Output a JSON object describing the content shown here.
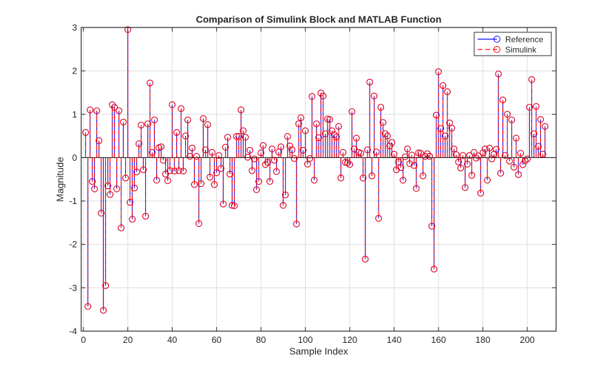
{
  "chart_data": {
    "type": "stem",
    "title": "Comparison of Simulink Block and MATLAB Function",
    "xlabel": "Sample Index",
    "ylabel": "Magnitude",
    "xlim": [
      -1,
      213
    ],
    "ylim": [
      -4,
      3
    ],
    "xticks": [
      0,
      20,
      40,
      60,
      80,
      100,
      120,
      140,
      160,
      180,
      200
    ],
    "xtick_labels": [
      "0",
      "20",
      "40",
      "60",
      "80",
      "100",
      "120",
      "140",
      "160",
      "180",
      "200"
    ],
    "yticks": [
      -4,
      -3,
      -2,
      -1,
      0,
      1,
      2,
      3
    ],
    "ytick_labels": [
      "-4",
      "-3",
      "-2",
      "-1",
      "0",
      "1",
      "2",
      "3"
    ],
    "grid": true,
    "legend_position": "top-right",
    "series": [
      {
        "name": "Reference",
        "color": "#0000ff",
        "line_style": "solid",
        "marker": "circle"
      },
      {
        "name": "Simulink",
        "color": "#ff0000",
        "line_style": "dashed",
        "marker": "circle"
      }
    ],
    "x_start": 1,
    "values": [
      0.58,
      -3.43,
      1.1,
      -0.55,
      -0.72,
      1.08,
      0.39,
      -1.28,
      -3.52,
      -2.95,
      -0.65,
      -0.85,
      1.22,
      1.16,
      -0.72,
      1.08,
      -1.62,
      0.82,
      -0.47,
      2.95,
      -1.03,
      -1.42,
      -0.7,
      -0.33,
      0.32,
      0.75,
      -0.28,
      -1.35,
      0.78,
      1.72,
      0.12,
      0.87,
      -0.52,
      0.23,
      0.25,
      -0.06,
      -0.38,
      -0.53,
      -0.3,
      1.22,
      -0.31,
      0.58,
      -0.3,
      1.13,
      -0.31,
      0.5,
      0.87,
      0.03,
      0.22,
      -0.62,
      0.03,
      -1.52,
      -0.6,
      0.9,
      0.18,
      0.76,
      -0.45,
      0.12,
      -0.62,
      -0.35,
      0.05,
      -0.25,
      -1.07,
      0.24,
      0.47,
      -0.38,
      -1.1,
      -1.11,
      0.49,
      0.49,
      1.1,
      0.62,
      0.47,
      0.01,
      0.17,
      -0.3,
      -0.03,
      -0.74,
      -0.55,
      0.11,
      0.28,
      -0.16,
      -0.11,
      -0.55,
      0.2,
      -0.06,
      -0.32,
      0.13,
      0.25,
      -1.1,
      -0.86,
      0.49,
      0.27,
      0.18,
      -0.02,
      -1.53,
      0.78,
      0.92,
      0.17,
      0.62,
      -0.15,
      -0.02,
      1.41,
      -0.52,
      0.78,
      0.46,
      1.49,
      1.42,
      0.55,
      0.89,
      0.88,
      0.62,
      0.53,
      0.48,
      0.72,
      -0.47,
      0.12,
      -0.11,
      -0.12,
      -0.16,
      1.06,
      0.2,
      0.45,
      0.12,
      0.1,
      -0.47,
      -2.34,
      0.18,
      1.74,
      -0.42,
      1.42,
      0.13,
      -1.4,
      1.16,
      0.81,
      0.55,
      0.5,
      0.27,
      0.35,
      0.08,
      -0.28,
      -0.1,
      -0.23,
      -0.52,
      0.02,
      0.2,
      -0.14,
      0.06,
      -0.18,
      -0.71,
      0.11,
      0.1,
      -0.42,
      0.03,
      0.09,
      0.03,
      -1.58,
      -2.57,
      0.98,
      1.98,
      0.67,
      1.66,
      0.5,
      1.52,
      0.8,
      0.68,
      0.2,
      0.07,
      -0.1,
      -0.24,
      0.05,
      -0.69,
      -0.15,
      0.05,
      -0.41,
      0.12,
      -0.01,
      0.04,
      -0.82,
      0.11,
      0.2,
      -0.52,
      0.22,
      -0.03,
      0.08,
      0.19,
      1.93,
      -0.36,
      1.33,
      0.05,
      1.0,
      -0.08,
      0.87,
      -0.22,
      0.45,
      -0.39,
      0.1,
      -0.16,
      -0.07,
      -0.03,
      1.16,
      1.8,
      0.55,
      1.18,
      0.26,
      0.88,
      0.08,
      0.72
    ],
    "series_match": "Simulink output overlays Reference exactly"
  }
}
